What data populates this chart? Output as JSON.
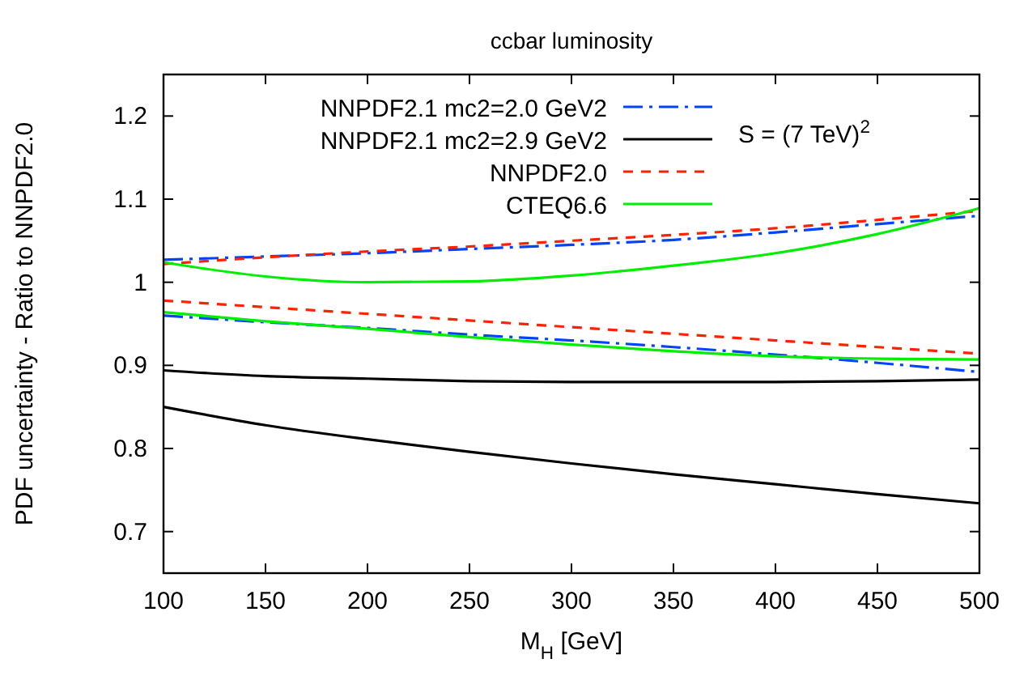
{
  "chart_data": {
    "type": "line",
    "title": "ccbar luminosity",
    "xlabel": "M$_{H}$ [GeV]",
    "ylabel": "PDF uncertainty - Ratio to NNPDF2.0",
    "x": [
      100,
      150,
      200,
      250,
      300,
      350,
      400,
      450,
      500
    ],
    "xlim": [
      100,
      500
    ],
    "xticks": [
      100,
      150,
      200,
      250,
      300,
      350,
      400,
      450,
      500
    ],
    "ylim": [
      0.65,
      1.25
    ],
    "yticks": [
      0.7,
      0.8,
      0.9,
      1,
      1.1,
      1.2
    ],
    "grid": false,
    "legend": "top left",
    "annotations": [
      "S = (7 TeV)$^{2}$"
    ],
    "series": [
      {
        "name": "NNPDF2.1 mc2=2.0 GeV2",
        "color": "#0044ff",
        "line_style": "dashdot",
        "values": [
          1.027,
          1.031,
          1.035,
          1.04,
          1.045,
          1.051,
          1.06,
          1.07,
          1.08
        ]
      },
      {
        "color": "#0044ff",
        "line_style": "dashdot",
        "values": [
          0.96,
          0.952,
          0.945,
          0.937,
          0.93,
          0.922,
          0.913,
          0.903,
          0.892
        ]
      },
      {
        "name": "NNPDF2.1 mc2=2.9 GeV2",
        "color": "#000000",
        "line_style": "solid",
        "values": [
          0.894,
          0.887,
          0.884,
          0.881,
          0.88,
          0.88,
          0.88,
          0.881,
          0.883
        ]
      },
      {
        "color": "#000000",
        "line_style": "solid",
        "values": [
          0.85,
          0.828,
          0.811,
          0.796,
          0.782,
          0.769,
          0.757,
          0.745,
          0.734
        ]
      },
      {
        "name": "NNPDF2.0",
        "color": "#ff2200",
        "line_style": "dashed",
        "values": [
          1.022,
          1.03,
          1.037,
          1.043,
          1.05,
          1.057,
          1.065,
          1.075,
          1.086
        ]
      },
      {
        "color": "#ff2200",
        "line_style": "dashed",
        "values": [
          0.978,
          0.97,
          0.962,
          0.954,
          0.946,
          0.938,
          0.93,
          0.922,
          0.914
        ]
      },
      {
        "name": "CTEQ6.6",
        "color": "#00ee00",
        "line_style": "solid",
        "values": [
          1.024,
          1.007,
          1.0,
          1.001,
          1.008,
          1.02,
          1.035,
          1.058,
          1.089
        ]
      },
      {
        "color": "#00ee00",
        "line_style": "solid",
        "values": [
          0.964,
          0.953,
          0.944,
          0.934,
          0.925,
          0.917,
          0.911,
          0.908,
          0.907
        ]
      }
    ]
  }
}
